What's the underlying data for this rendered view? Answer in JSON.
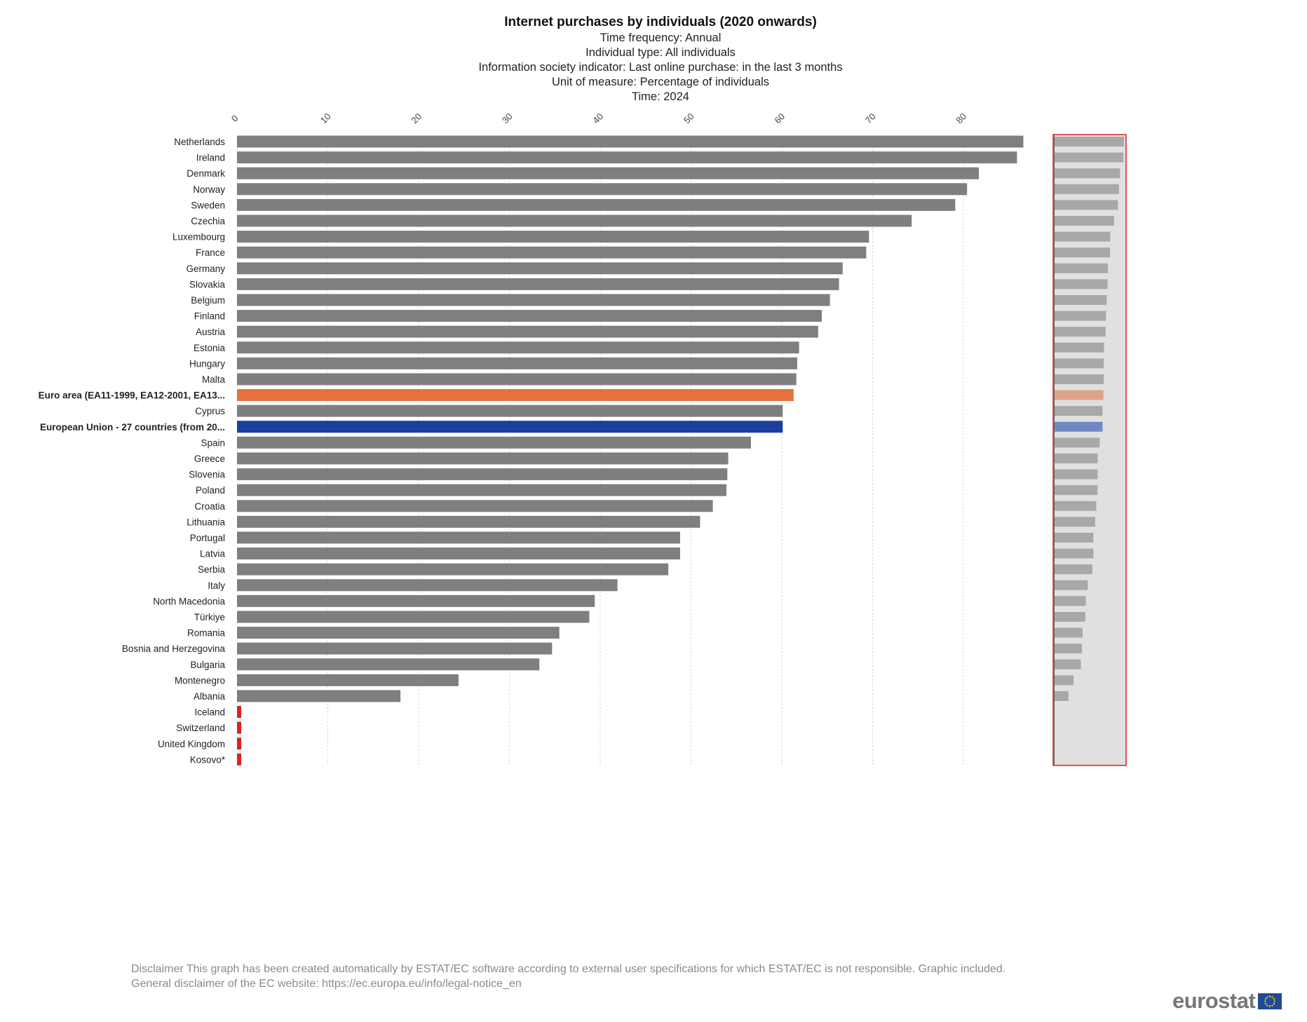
{
  "header": {
    "title": "Internet purchases by individuals (2020 onwards)",
    "subtitles": [
      "Time frequency:  Annual",
      "Individual type:  All individuals",
      "Information society indicator:  Last online purchase: in the last 3 months",
      "Unit of measure:  Percentage of individuals",
      "Time:  2024"
    ]
  },
  "colors": {
    "bar": "#7f7f7f",
    "euro_area": "#e8703a",
    "eu27": "#1a3f9e",
    "missing": "#e02020",
    "grid": "#cfcfcf",
    "overview_bg": "#e0e0e0",
    "overview_bar": "#a8a8a8"
  },
  "chart_data": {
    "type": "bar",
    "orientation": "horizontal",
    "title": "Internet purchases by individuals (2020 onwards)",
    "xlabel": "",
    "ylabel": "",
    "xlim": [
      0,
      90
    ],
    "x_ticks": [
      0,
      10,
      20,
      30,
      40,
      50,
      60,
      70,
      80
    ],
    "grid": true,
    "categories": [
      "Netherlands",
      "Ireland",
      "Denmark",
      "Norway",
      "Sweden",
      "Czechia",
      "Luxembourg",
      "France",
      "Germany",
      "Slovakia",
      "Belgium",
      "Finland",
      "Austria",
      "Estonia",
      "Hungary",
      "Malta",
      "Euro area (EA11-1999, EA12-2001, EA13...",
      "Cyprus",
      "European Union - 27 countries (from 20...",
      "Spain",
      "Greece",
      "Slovenia",
      "Poland",
      "Croatia",
      "Lithuania",
      "Portugal",
      "Latvia",
      "Serbia",
      "Italy",
      "North Macedonia",
      "Türkiye",
      "Romania",
      "Bosnia and Herzegovina",
      "Bulgaria",
      "Montenegro",
      "Albania",
      "Iceland",
      "Switzerland",
      "United Kingdom",
      "Kosovo*"
    ],
    "values": [
      86.6,
      85.9,
      81.7,
      80.4,
      79.1,
      74.3,
      69.6,
      69.3,
      66.7,
      66.3,
      65.3,
      64.4,
      64.0,
      61.9,
      61.7,
      61.6,
      61.3,
      60.1,
      60.1,
      56.6,
      54.1,
      54.0,
      53.9,
      52.4,
      51.0,
      48.8,
      48.8,
      47.5,
      41.9,
      39.4,
      38.8,
      35.5,
      34.7,
      33.3,
      24.4,
      18.0,
      null,
      null,
      null,
      null
    ],
    "highlight": {
      "Euro area (EA11-1999, EA12-2001, EA13...": "euro_area",
      "European Union - 27 countries (from 20...": "eu27"
    },
    "missing_categories": [
      "Iceland",
      "Switzerland",
      "United Kingdom",
      "Kosovo*"
    ]
  },
  "footer": {
    "disclaimer_line1": "Disclaimer This graph has been created automatically by ESTAT/EC software according to external user specifications for which ESTAT/EC is not responsible. Graphic included.",
    "disclaimer_line2": "General disclaimer of the EC website: https://ec.europa.eu/info/legal-notice_en",
    "logo_text": "eurostat"
  }
}
